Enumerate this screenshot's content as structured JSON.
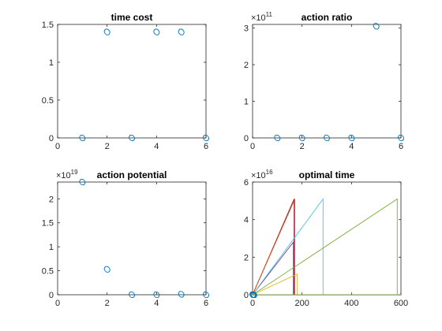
{
  "chart_data": [
    {
      "type": "scatter",
      "title": "time cost",
      "xlim": [
        0,
        6
      ],
      "ylim": [
        0,
        1.5
      ],
      "xticks": [
        "0",
        "2",
        "4",
        "6"
      ],
      "yticks": [
        "0",
        "0.5",
        "1",
        "1.5"
      ],
      "exponent_base": "",
      "exponent_power": "",
      "x": [
        1,
        2,
        3,
        4,
        5,
        6
      ],
      "y": [
        0,
        1.4,
        0,
        1.4,
        1.4,
        0
      ],
      "marker": "circle",
      "color": "#0072BD"
    },
    {
      "type": "scatter",
      "title": "action ratio",
      "xlim": [
        0,
        6
      ],
      "ylim": [
        0,
        3.1
      ],
      "xticks": [
        "0",
        "2",
        "4",
        "6"
      ],
      "yticks": [
        "0",
        "1",
        "2",
        "3"
      ],
      "exponent_base": "×10",
      "exponent_power": "11",
      "x": [
        1,
        2,
        3,
        4,
        5,
        6
      ],
      "y": [
        0,
        0,
        0,
        0,
        3.05,
        0
      ],
      "marker": "circle",
      "color": "#0072BD"
    },
    {
      "type": "scatter",
      "title": "action potential",
      "xlim": [
        0,
        6
      ],
      "ylim": [
        0,
        2.35
      ],
      "xticks": [
        "0",
        "2",
        "4",
        "6"
      ],
      "yticks": [
        "0",
        "0.5",
        "1",
        "1.5",
        "2"
      ],
      "exponent_base": "×10",
      "exponent_power": "19",
      "x": [
        1,
        2,
        3,
        4,
        5,
        6
      ],
      "y": [
        2.35,
        0.53,
        0,
        0,
        0.01,
        0
      ],
      "marker": "circle",
      "color": "#0072BD"
    },
    {
      "type": "line",
      "title": "optimal time",
      "xlim": [
        0,
        600
      ],
      "ylim": [
        0,
        6
      ],
      "xticks": [
        "0",
        "200",
        "400",
        "600"
      ],
      "yticks": [
        "0",
        "2",
        "4",
        "6"
      ],
      "exponent_base": "×10",
      "exponent_power": "16",
      "marker_points": {
        "x": [
          0,
          3,
          6
        ],
        "y": [
          0,
          0,
          0
        ],
        "color": "#0072BD"
      },
      "series": [
        {
          "x": [
            0,
            600
          ],
          "y": [
            0,
            0
          ],
          "color": "#77AC30"
        },
        {
          "x": [
            0,
            168,
            168,
            0
          ],
          "y": [
            0,
            0,
            5.1,
            0
          ],
          "color": "#A2142F"
        },
        {
          "x": [
            0,
            171,
            171,
            0
          ],
          "y": [
            0,
            0,
            5.1,
            0
          ],
          "color": "#D95319"
        },
        {
          "x": [
            0,
            165,
            165,
            0
          ],
          "y": [
            0,
            0,
            2.8,
            0
          ],
          "color": "#7E2F8E"
        },
        {
          "x": [
            0,
            180,
            180,
            0
          ],
          "y": [
            0,
            0,
            1.1,
            0
          ],
          "color": "#EDB120"
        },
        {
          "x": [
            0,
            285,
            285,
            0
          ],
          "y": [
            0,
            0,
            5.1,
            0
          ],
          "color": "#4DBEEE"
        },
        {
          "x": [
            0,
            585,
            585,
            0
          ],
          "y": [
            0,
            0,
            5.1,
            0
          ],
          "color": "#77AC30"
        }
      ]
    }
  ]
}
